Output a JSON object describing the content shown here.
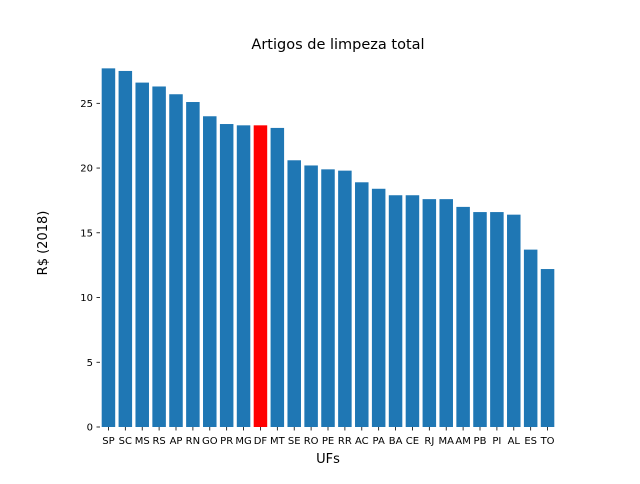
{
  "chart_data": {
    "type": "bar",
    "title": "Artigos de limpeza total",
    "xlabel": "UFs",
    "ylabel": "R$ (2018)",
    "ylim": [
      0,
      28.5
    ],
    "yticks": [
      0,
      5,
      10,
      15,
      20,
      25
    ],
    "grid": false,
    "categories": [
      "SP",
      "SC",
      "MS",
      "RS",
      "AP",
      "RN",
      "GO",
      "PR",
      "MG",
      "DF",
      "MT",
      "SE",
      "RO",
      "PE",
      "RR",
      "AC",
      "PA",
      "BA",
      "CE",
      "RJ",
      "MA",
      "AM",
      "PB",
      "PI",
      "AL",
      "ES",
      "TO"
    ],
    "values": [
      27.7,
      27.5,
      26.6,
      26.3,
      25.7,
      25.1,
      24.0,
      23.4,
      23.3,
      23.3,
      23.1,
      20.6,
      20.2,
      19.9,
      19.8,
      18.9,
      18.4,
      17.9,
      17.9,
      17.6,
      17.6,
      17.0,
      16.6,
      16.6,
      16.4,
      13.7,
      12.2
    ],
    "highlight": "DF",
    "colors": {
      "bar": "#1f77b4",
      "highlight": "#ff0000"
    }
  }
}
